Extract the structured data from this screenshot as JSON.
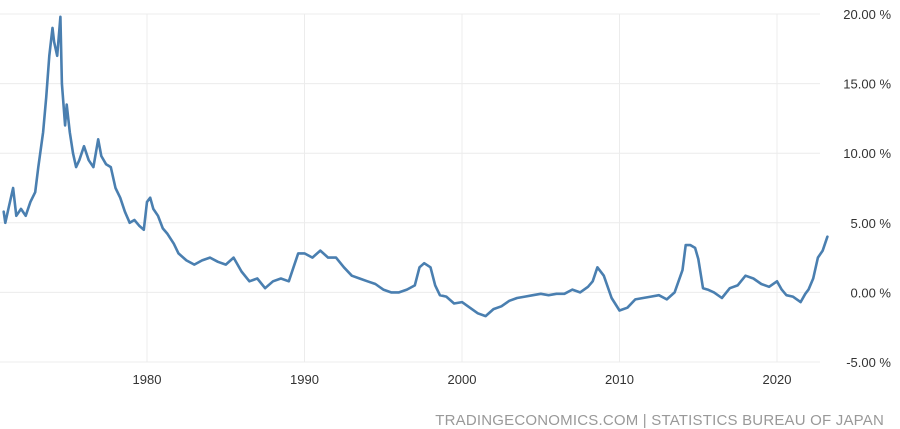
{
  "chart_data": {
    "type": "line",
    "title": "",
    "xlabel": "",
    "ylabel": "",
    "x_ticks": [
      "1980",
      "1990",
      "2000",
      "2010",
      "2020"
    ],
    "x_tick_values": [
      1980,
      1990,
      2000,
      2010,
      2020
    ],
    "y_ticks": [
      "20.00 %",
      "15.00 %",
      "10.00 %",
      "5.00 %",
      "0.00 %",
      "-5.00 %"
    ],
    "y_tick_values": [
      20,
      15,
      10,
      5,
      0,
      -5
    ],
    "xlim": [
      1970.9,
      2023.5
    ],
    "ylim": [
      -5,
      20
    ],
    "grid": true,
    "colors": {
      "line": "#4a7fb0",
      "grid": "#ececec",
      "tick_text": "#333333",
      "source_text": "#999999"
    },
    "series": [
      {
        "x": [
          1970.9,
          1971.0,
          1971.2,
          1971.5,
          1971.7,
          1972.0,
          1972.3,
          1972.6,
          1972.9,
          1973.1,
          1973.4,
          1973.6,
          1973.8,
          1974.0,
          1974.1,
          1974.3,
          1974.5,
          1974.6,
          1974.8,
          1974.9,
          1975.1,
          1975.3,
          1975.5,
          1975.7,
          1976.0,
          1976.3,
          1976.6,
          1976.9,
          1977.1,
          1977.4,
          1977.7,
          1978.0,
          1978.3,
          1978.6,
          1978.9,
          1979.2,
          1979.5,
          1979.8,
          1980.0,
          1980.2,
          1980.4,
          1980.7,
          1981.0,
          1981.3,
          1981.7,
          1982.0,
          1982.5,
          1983.0,
          1983.5,
          1984.0,
          1984.5,
          1985.0,
          1985.5,
          1986.0,
          1986.5,
          1987.0,
          1987.5,
          1988.0,
          1988.5,
          1989.0,
          1989.3,
          1989.6,
          1990.0,
          1990.5,
          1991.0,
          1991.5,
          1992.0,
          1992.5,
          1993.0,
          1993.5,
          1994.0,
          1994.5,
          1995.0,
          1995.5,
          1996.0,
          1996.5,
          1997.0,
          1997.3,
          1997.6,
          1998.0,
          1998.3,
          1998.6,
          1999.0,
          1999.5,
          2000.0,
          2000.5,
          2001.0,
          2001.5,
          2002.0,
          2002.5,
          2003.0,
          2003.5,
          2004.0,
          2004.5,
          2005.0,
          2005.5,
          2006.0,
          2006.5,
          2007.0,
          2007.5,
          2008.0,
          2008.3,
          2008.6,
          2009.0,
          2009.5,
          2010.0,
          2010.5,
          2011.0,
          2011.5,
          2012.0,
          2012.5,
          2013.0,
          2013.5,
          2014.0,
          2014.2,
          2014.5,
          2014.8,
          2015.0,
          2015.3,
          2015.6,
          2016.0,
          2016.5,
          2017.0,
          2017.5,
          2018.0,
          2018.5,
          2019.0,
          2019.5,
          2020.0,
          2020.3,
          2020.6,
          2021.0,
          2021.5,
          2021.8,
          2022.0,
          2022.3,
          2022.6,
          2022.9,
          2023.2
        ],
        "y": [
          5.8,
          5.0,
          6.0,
          7.5,
          5.5,
          6.0,
          5.5,
          6.5,
          7.2,
          9.0,
          11.5,
          14.0,
          17.0,
          19.0,
          18.0,
          17.0,
          19.8,
          15.0,
          12.0,
          13.5,
          11.5,
          10.0,
          9.0,
          9.5,
          10.5,
          9.5,
          9.0,
          11.0,
          9.8,
          9.2,
          9.0,
          7.5,
          6.8,
          5.8,
          5.0,
          5.2,
          4.8,
          4.5,
          6.5,
          6.8,
          6.0,
          5.5,
          4.6,
          4.2,
          3.5,
          2.8,
          2.3,
          2.0,
          2.3,
          2.5,
          2.2,
          2.0,
          2.5,
          1.5,
          0.8,
          1.0,
          0.3,
          0.8,
          1.0,
          0.8,
          1.8,
          2.8,
          2.8,
          2.5,
          3.0,
          2.5,
          2.5,
          1.8,
          1.2,
          1.0,
          0.8,
          0.6,
          0.2,
          0.0,
          0.0,
          0.2,
          0.5,
          1.8,
          2.1,
          1.8,
          0.5,
          -0.2,
          -0.3,
          -0.8,
          -0.7,
          -1.1,
          -1.5,
          -1.7,
          -1.2,
          -1.0,
          -0.6,
          -0.4,
          -0.3,
          -0.2,
          -0.1,
          -0.2,
          -0.1,
          -0.1,
          0.2,
          0.0,
          0.4,
          0.8,
          1.8,
          1.2,
          -0.4,
          -1.3,
          -1.1,
          -0.5,
          -0.4,
          -0.3,
          -0.2,
          -0.5,
          0.0,
          1.6,
          3.4,
          3.4,
          3.2,
          2.4,
          0.3,
          0.2,
          0.0,
          -0.4,
          0.3,
          0.5,
          1.2,
          1.0,
          0.6,
          0.4,
          0.8,
          0.2,
          -0.2,
          -0.3,
          -0.7,
          -0.1,
          0.2,
          1.0,
          2.5,
          3.0,
          4.0
        ]
      }
    ]
  },
  "source": "TRADINGECONOMICS.COM | STATISTICS BUREAU OF JAPAN"
}
